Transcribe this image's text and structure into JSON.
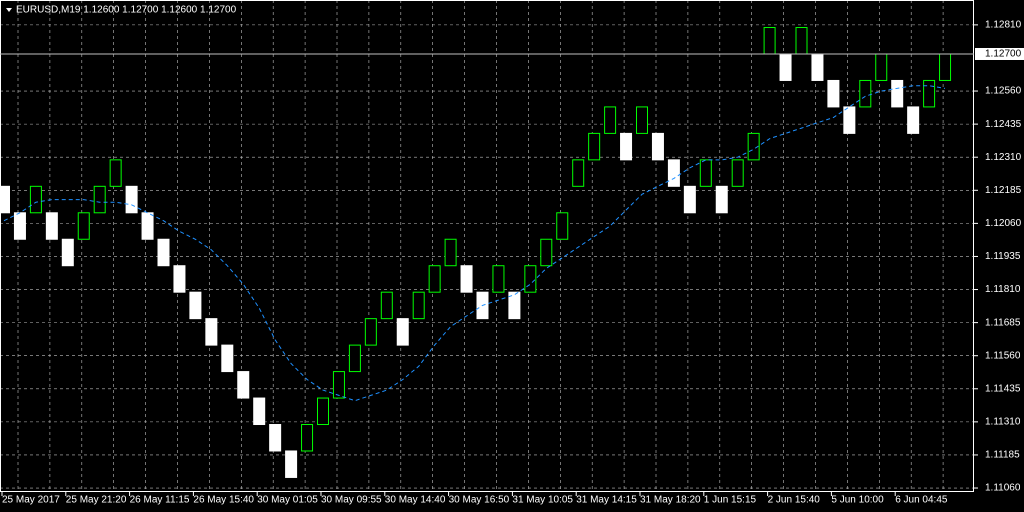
{
  "chart_data": {
    "type": "renko",
    "title": "EURUSD,M19  1.12600 1.12700 1.12600 1.12700",
    "categories": [
      "25 May 2017",
      null,
      null,
      null,
      "25 May 21:20",
      null,
      null,
      null,
      "26 May 11:15",
      null,
      null,
      null,
      "26 May 15:40",
      null,
      null,
      null,
      "30 May 01:05",
      null,
      null,
      null,
      "30 May 09:55",
      null,
      null,
      null,
      "30 May 14:40",
      null,
      null,
      null,
      "30 May 16:50",
      null,
      null,
      null,
      "31 May 10:05",
      null,
      null,
      null,
      "31 May 14:15",
      null,
      null,
      null,
      "31 May 18:20",
      null,
      null,
      null,
      "1 Jun 15:15",
      null,
      null,
      null,
      "2 Jun 15:40",
      null,
      null,
      null,
      "5 Jun 10:00",
      null,
      null,
      null,
      "6 Jun 04:45",
      null,
      null,
      null
    ],
    "open": [
      1.122,
      1.121,
      1.121,
      1.121,
      1.12,
      1.12,
      1.121,
      1.122,
      1.122,
      1.121,
      1.12,
      1.119,
      1.118,
      1.117,
      1.116,
      1.115,
      1.114,
      1.113,
      1.112,
      1.112,
      1.113,
      1.114,
      1.115,
      1.116,
      1.117,
      1.117,
      1.117,
      1.118,
      1.119,
      1.119,
      1.118,
      1.118,
      1.118,
      1.118,
      1.119,
      1.12,
      1.122,
      1.123,
      1.124,
      1.124,
      1.124,
      1.124,
      1.123,
      1.122,
      1.122,
      1.122,
      1.122,
      1.123,
      1.127,
      1.127,
      1.127,
      1.127,
      1.126,
      1.125,
      1.125,
      1.126,
      1.126,
      1.125,
      1.125,
      1.126
    ],
    "close": [
      1.121,
      1.12,
      1.122,
      1.12,
      1.119,
      1.121,
      1.122,
      1.123,
      1.121,
      1.12,
      1.119,
      1.118,
      1.117,
      1.116,
      1.115,
      1.114,
      1.113,
      1.112,
      1.111,
      1.113,
      1.114,
      1.115,
      1.116,
      1.117,
      1.118,
      1.116,
      1.118,
      1.119,
      1.12,
      1.118,
      1.117,
      1.119,
      1.117,
      1.119,
      1.12,
      1.121,
      1.123,
      1.124,
      1.125,
      1.123,
      1.125,
      1.123,
      1.122,
      1.121,
      1.123,
      1.121,
      1.123,
      1.124,
      1.128,
      1.126,
      1.128,
      1.126,
      1.125,
      1.124,
      1.126,
      1.127,
      1.125,
      1.124,
      1.126,
      1.127
    ],
    "up_color": "#00ff00",
    "down_color": "#ffffff",
    "ma": {
      "color": "#1e90ff",
      "values": [
        1.1207,
        1.121,
        1.1214,
        1.1215,
        1.1215,
        1.1215,
        1.1214,
        1.1214,
        1.1213,
        1.121,
        1.1207,
        1.1203,
        1.12,
        1.1196,
        1.119,
        1.1183,
        1.1174,
        1.1162,
        1.1153,
        1.1147,
        1.1143,
        1.1141,
        1.1139,
        1.1141,
        1.1143,
        1.1147,
        1.1152,
        1.116,
        1.1167,
        1.1171,
        1.1175,
        1.1177,
        1.1179,
        1.1183,
        1.1189,
        1.1193,
        1.1197,
        1.1201,
        1.1205,
        1.1211,
        1.1217,
        1.122,
        1.1223,
        1.1227,
        1.123,
        1.123,
        1.1231,
        1.1234,
        1.1238,
        1.124,
        1.1242,
        1.1244,
        1.1246,
        1.125,
        1.1254,
        1.1256,
        1.1257,
        1.1258,
        1.1258,
        1.1257
      ]
    },
    "ylim": [
      1.11045,
      1.12904
    ],
    "yticks": [
      {
        "value": 1.1281,
        "label": "1.12810"
      },
      {
        "value": 1.1256,
        "label": "1.12560"
      },
      {
        "value": 1.12435,
        "label": "1.12435"
      },
      {
        "value": 1.1231,
        "label": "1.12310"
      },
      {
        "value": 1.12185,
        "label": "1.12185"
      },
      {
        "value": 1.1206,
        "label": "1.12060"
      },
      {
        "value": 1.11935,
        "label": "1.11935"
      },
      {
        "value": 1.1181,
        "label": "1.11810"
      },
      {
        "value": 1.11685,
        "label": "1.11685"
      },
      {
        "value": 1.1156,
        "label": "1.11560"
      },
      {
        "value": 1.11435,
        "label": "1.11435"
      },
      {
        "value": 1.1131,
        "label": "1.11310"
      },
      {
        "value": 1.11185,
        "label": "1.11185"
      },
      {
        "value": 1.1106,
        "label": "1.11060"
      }
    ],
    "last_price": {
      "value": 1.127,
      "label": "1.12700"
    },
    "grid": true
  }
}
